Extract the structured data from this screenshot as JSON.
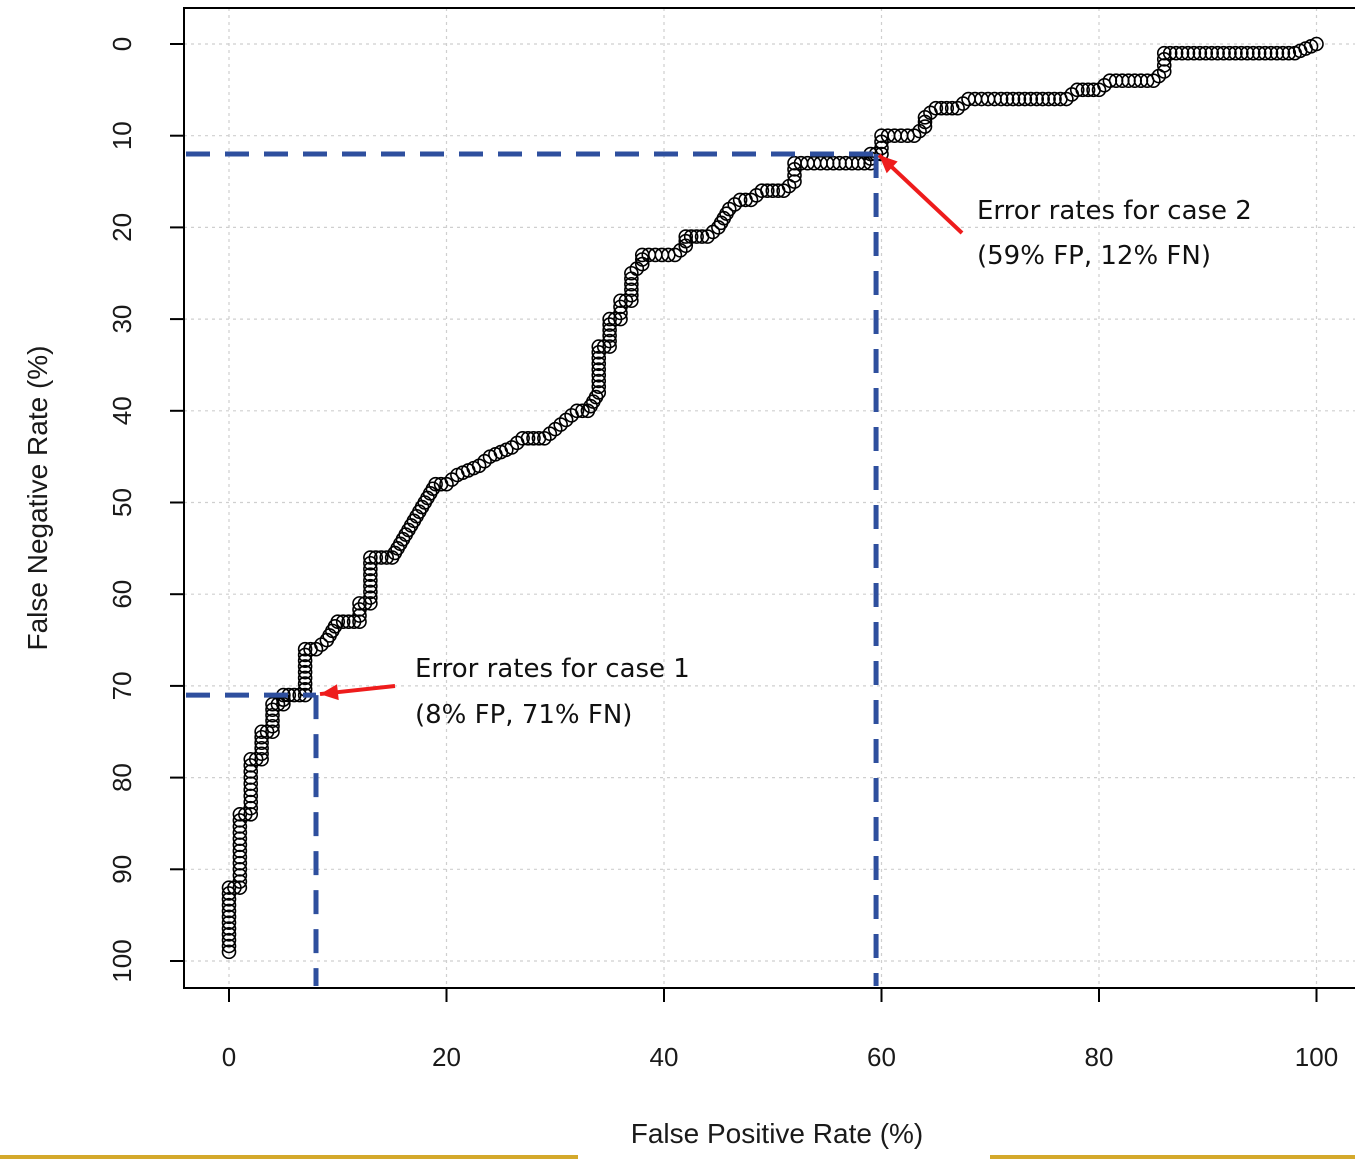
{
  "chart_data": {
    "type": "scatter",
    "title": "",
    "xlabel": "False Positive Rate (%)",
    "ylabel": "False Negative Rate (%)",
    "xlim": [
      -4,
      104
    ],
    "ylim": [
      0,
      100
    ],
    "y_inverted": true,
    "x_ticks": [
      "0",
      "20",
      "40",
      "60",
      "80",
      "100"
    ],
    "y_ticks": [
      "0",
      "10",
      "20",
      "30",
      "40",
      "50",
      "60",
      "70",
      "80",
      "90",
      "100"
    ],
    "grid": true,
    "marker": "open-circle",
    "colors": {
      "points": "#000000",
      "reference_lines": "#2e4f9e",
      "arrows": "#ee1c1c",
      "grid": "#cfcfcf",
      "bottom_rule": "#d4a92b"
    },
    "curve_vertices": [
      [
        0,
        99
      ],
      [
        0,
        92
      ],
      [
        1,
        92
      ],
      [
        1,
        84
      ],
      [
        2,
        84
      ],
      [
        2,
        78
      ],
      [
        3,
        78
      ],
      [
        3,
        75
      ],
      [
        4,
        75
      ],
      [
        4,
        72
      ],
      [
        5,
        72
      ],
      [
        5,
        71
      ],
      [
        6,
        71
      ],
      [
        7,
        71
      ],
      [
        7,
        66
      ],
      [
        8,
        66
      ],
      [
        9,
        65
      ],
      [
        10,
        63
      ],
      [
        12,
        63
      ],
      [
        12,
        61
      ],
      [
        13,
        61
      ],
      [
        13,
        56
      ],
      [
        15,
        56
      ],
      [
        16,
        54
      ],
      [
        17,
        52
      ],
      [
        18,
        50
      ],
      [
        19,
        48
      ],
      [
        20,
        48
      ],
      [
        21,
        47
      ],
      [
        23,
        46
      ],
      [
        24,
        45
      ],
      [
        26,
        44
      ],
      [
        27,
        43
      ],
      [
        29,
        43
      ],
      [
        30,
        42
      ],
      [
        31,
        41
      ],
      [
        32,
        40
      ],
      [
        33,
        40
      ],
      [
        34,
        38
      ],
      [
        34,
        33
      ],
      [
        35,
        33
      ],
      [
        35,
        30
      ],
      [
        36,
        30
      ],
      [
        36,
        28
      ],
      [
        37,
        28
      ],
      [
        37,
        25
      ],
      [
        38,
        24
      ],
      [
        38,
        23
      ],
      [
        41,
        23
      ],
      [
        42,
        22
      ],
      [
        42,
        21
      ],
      [
        44,
        21
      ],
      [
        45,
        20
      ],
      [
        46,
        18
      ],
      [
        47,
        17
      ],
      [
        48,
        17
      ],
      [
        49,
        16
      ],
      [
        51,
        16
      ],
      [
        52,
        15
      ],
      [
        52,
        13
      ],
      [
        55,
        13
      ],
      [
        59,
        13
      ],
      [
        59,
        12
      ],
      [
        60,
        12
      ],
      [
        60,
        10
      ],
      [
        63,
        10
      ],
      [
        64,
        9
      ],
      [
        64,
        8
      ],
      [
        65,
        7
      ],
      [
        67,
        7
      ],
      [
        68,
        6
      ],
      [
        71,
        6
      ],
      [
        77,
        6
      ],
      [
        78,
        5
      ],
      [
        80,
        5
      ],
      [
        81,
        4
      ],
      [
        85,
        4
      ],
      [
        86,
        3
      ],
      [
        86,
        1
      ],
      [
        92,
        1
      ],
      [
        98,
        1
      ],
      [
        100,
        0
      ]
    ],
    "reference_points": [
      {
        "x": 8,
        "y": 71
      },
      {
        "x": 59.5,
        "y": 12
      }
    ],
    "annotations": [
      {
        "line1": "Error rates for case 1",
        "line2": "(8% FP, 71% FN)",
        "x": 8,
        "y": 71
      },
      {
        "line1": "Error rates for case 2",
        "line2": "(59% FP, 12% FN)",
        "x": 59.5,
        "y": 12
      }
    ]
  }
}
